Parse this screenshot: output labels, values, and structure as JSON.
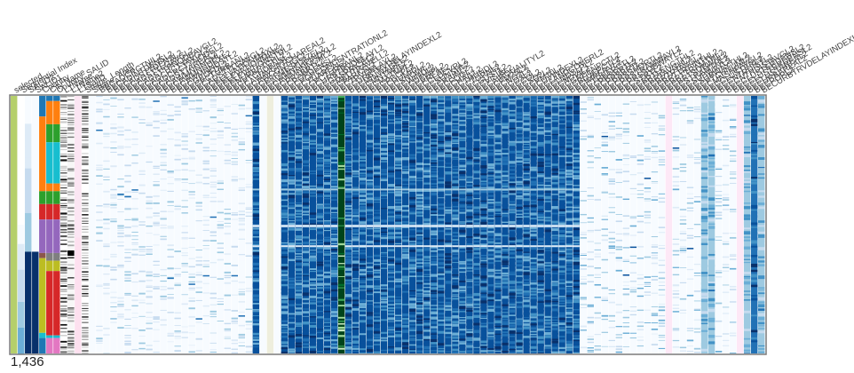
{
  "chart_data": {
    "type": "heatmap",
    "row_count_label": "1,436",
    "columns": [
      {
        "label": "selected",
        "scheme": "selected"
      },
      {
        "label": "Sequential Index",
        "scheme": "seq"
      },
      {
        "label": "SALID2",
        "scheme": "salid2"
      },
      {
        "label": "SALID1",
        "scheme": "salid1"
      },
      {
        "label": "Country",
        "scheme": "country"
      },
      {
        "label": "City Name",
        "scheme": "cityname"
      },
      {
        "label": "Country_SALID",
        "scheme": "countrysalid"
      },
      {
        "label": "L1Name",
        "scheme": "l1name"
      },
      {
        "label": "L1Name2",
        "scheme": "l1name2"
      },
      {
        "label": "L1SalID",
        "scheme": "l1salid"
      },
      {
        "label": "Shape_Length",
        "scheme": "grey"
      },
      {
        "label": "Shape_Area",
        "scheme": "blank"
      },
      {
        "label": "BECADCRCTNIL2",
        "scheme": "sparse"
      },
      {
        "label": "BECADINTDENSL2",
        "scheme": "sparse"
      },
      {
        "label": "BECADSTTDENSL2",
        "scheme": "sparse"
      },
      {
        "label": "BECADSTTLGAVGL2",
        "scheme": "sparse"
      },
      {
        "label": "BECADSTTPNODEAVGL2",
        "scheme": "sparse"
      },
      {
        "label": "BECADCRCTYAVGL2",
        "scheme": "sparse"
      },
      {
        "label": "BECADCRCTYNODEL2",
        "scheme": "sparse"
      },
      {
        "label": "BECADSTTAREAL2",
        "scheme": "sparse"
      },
      {
        "label": "BECAWMNNNGHL2",
        "scheme": "sparse"
      },
      {
        "label": "BECAWMNNDEXL2",
        "scheme": "sparse"
      },
      {
        "label": "BECAWMNNDSTL2",
        "scheme": "sparse"
      },
      {
        "label": "BECGEOFDL2",
        "scheme": "sparse"
      },
      {
        "label": "BECPCTURBANL2",
        "scheme": "sparse"
      },
      {
        "label": "BECADSTTLGAVGL2",
        "scheme": "sparse"
      },
      {
        "label": "BECELEVATIONMAXL2",
        "scheme": "sparse"
      },
      {
        "label": "BECELEVATIONMINL2",
        "scheme": "sparse"
      },
      {
        "label": "BECELEVATIONSTDL2",
        "scheme": "sparse"
      },
      {
        "label": "BECNURBPTCHL2",
        "scheme": "sparse"
      },
      {
        "label": "BECPTCHDENSL2",
        "scheme": "sparse"
      },
      {
        "label": "BECAWAVGPTCHAREAL2",
        "scheme": "sparse"
      },
      {
        "label": "BECAWCONTIGL2",
        "scheme": "sparse"
      },
      {
        "label": "BECEFFMESHSIZEL2",
        "scheme": "sparse"
      },
      {
        "label": "BECAWMNSHPINDXL2",
        "scheme": "dense"
      },
      {
        "label": "BECAWMNNNGHL2",
        "scheme": "blank"
      },
      {
        "label": "BECPRSBRTL2",
        "scheme": "beige"
      },
      {
        "label": "BECPOPDENSL2",
        "scheme": "blank"
      },
      {
        "label": "BECPOPCONCENTRATIONL2",
        "scheme": "dense"
      },
      {
        "label": "BECTUAREAL2",
        "scheme": "dense"
      },
      {
        "label": "BECPCTURBANL2",
        "scheme": "dense"
      },
      {
        "label": "BECURBTRVDELAYL2",
        "scheme": "dense"
      },
      {
        "label": "BECGASPRICEL2",
        "scheme": "dense"
      },
      {
        "label": "BECMEDTRAVELL2",
        "scheme": "dense"
      },
      {
        "label": "BECPARKSL2",
        "scheme": "dense"
      },
      {
        "label": "BECTRVDELAYL2",
        "scheme": "dense"
      },
      {
        "label": "BECURBTRVDELAYINDEXL2",
        "scheme": "green"
      },
      {
        "label": "BECMINWAGEL2",
        "scheme": "dense"
      },
      {
        "label": "BECMNTMPL2",
        "scheme": "dense"
      },
      {
        "label": "BECMXTMPL2",
        "scheme": "dense"
      },
      {
        "label": "BECPRCPL2",
        "scheme": "dense"
      },
      {
        "label": "BECHUMIDL2",
        "scheme": "dense"
      },
      {
        "label": "BECSNOWL2",
        "scheme": "dense"
      },
      {
        "label": "BECWINDL2",
        "scheme": "dense"
      },
      {
        "label": "BECDEWPL2",
        "scheme": "dense"
      },
      {
        "label": "BECPRESL2",
        "scheme": "dense"
      },
      {
        "label": "BECCLDCVRL2",
        "scheme": "dense"
      },
      {
        "label": "BECSUNSHL2",
        "scheme": "dense"
      },
      {
        "label": "BECRAINL2",
        "scheme": "dense"
      },
      {
        "label": "BECFOGL2",
        "scheme": "dense"
      },
      {
        "label": "BECHAILL2",
        "scheme": "dense"
      },
      {
        "label": "BECTHUNDL2",
        "scheme": "dense"
      },
      {
        "label": "BECTORNL2",
        "scheme": "dense"
      },
      {
        "label": "BECGUSTL2",
        "scheme": "dense"
      },
      {
        "label": "BECVISIBL2",
        "scheme": "dense"
      },
      {
        "label": "BECAIRQUALITYL2",
        "scheme": "dense"
      },
      {
        "label": "BECPM25L2",
        "scheme": "dense"
      },
      {
        "label": "BECNO2L2",
        "scheme": "dense"
      },
      {
        "label": "BECO3L2",
        "scheme": "dense"
      },
      {
        "label": "BECCOL2",
        "scheme": "dense"
      },
      {
        "label": "BECSO2L2",
        "scheme": "dense"
      },
      {
        "label": "BECPM10L2",
        "scheme": "dense"
      },
      {
        "label": "BECUVINDEXL2",
        "scheme": "dense"
      },
      {
        "label": "BECLANDCOVERL2",
        "scheme": "dense"
      },
      {
        "label": "BECLNDSLPL2",
        "scheme": "dense"
      },
      {
        "label": "BECNDVIL2",
        "scheme": "dense"
      },
      {
        "label": "BECGREENPCTL2",
        "scheme": "dense"
      },
      {
        "label": "BECBLUEPCTL2",
        "scheme": "dense"
      },
      {
        "label": "BECIMPERVL2",
        "scheme": "dense"
      },
      {
        "label": "BECTREEPCTL2",
        "scheme": "dense"
      },
      {
        "label": "BECPRSBRTL2",
        "scheme": "sparse2"
      },
      {
        "label": "BECPRSBRTL2",
        "scheme": "sparse2"
      },
      {
        "label": "BECPRSSHORTL2",
        "scheme": "sparse2"
      },
      {
        "label": "BECPRSTRAMWAYL2",
        "scheme": "sparse2"
      },
      {
        "label": "BECPRSSUBWAYL2",
        "scheme": "sparse2"
      },
      {
        "label": "BECSTRTL2",
        "scheme": "sparse2"
      },
      {
        "label": "BECBRTLENGTHL2",
        "scheme": "sparse2"
      },
      {
        "label": "BECBRTAVGHL2",
        "scheme": "sparse2"
      },
      {
        "label": "BECBRTPTAVGL2",
        "scheme": "sparse2"
      },
      {
        "label": "BECBRTTRAINTHL2",
        "scheme": "sparse2"
      },
      {
        "label": "BECBRTTRAMTHL2",
        "scheme": "sparse2"
      },
      {
        "label": "BECBRTSUBWHL2",
        "scheme": "sparse2"
      },
      {
        "label": "BECSTRAMTHL2",
        "scheme": "pink"
      },
      {
        "label": "BECSUBWAYL2",
        "scheme": "sparse2"
      },
      {
        "label": "BECSUBWAYTHL2",
        "scheme": "sparse2"
      },
      {
        "label": "BECPTCHNUML2",
        "scheme": "sparse2"
      },
      {
        "label": "BECMNSHPAVGL2",
        "scheme": "sparse2"
      },
      {
        "label": "BECCLUSTERL2",
        "scheme": "mid"
      },
      {
        "label": "BECCNTRDISTL2",
        "scheme": "mid"
      },
      {
        "label": "BECCNTRDISTAVGL2",
        "scheme": "sparse2"
      },
      {
        "label": "BECCLUSTERDENSL2",
        "scheme": "sparse2"
      },
      {
        "label": "BECCLUSTERDENSL2",
        "scheme": "sparse2"
      },
      {
        "label": "BECCLUSTAREAL2",
        "scheme": "pink"
      },
      {
        "label": "BECURBAREAL2",
        "scheme": "mid"
      },
      {
        "label": "BECPOPL2",
        "scheme": "dark"
      },
      {
        "label": "BECURBTRVDELAYINDEXL2",
        "scheme": "mid"
      }
    ]
  }
}
